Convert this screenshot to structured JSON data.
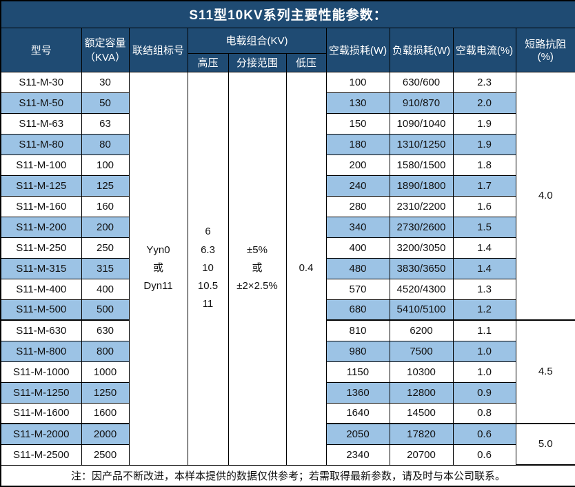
{
  "title": "S11型10KV系列主要性能参数：",
  "columns": {
    "model": "型号",
    "capacity_line1": "额定容量",
    "capacity_line2": "（KVA）",
    "connection": "联结组标号",
    "voltage_group": "电载组合(KV)",
    "hv": "高压",
    "tap_range": "分接范围",
    "lv": "低压",
    "no_load_loss": "空载损耗(W)",
    "load_loss": "负载损耗(W)",
    "no_load_current": "空载电流(%)",
    "impedance": "短路抗阻(%)"
  },
  "merged": {
    "connection_lines": [
      "Yyn0",
      "或",
      "Dyn11"
    ],
    "hv_lines": [
      "6",
      "6.3",
      "10",
      "10.5",
      "11"
    ],
    "tap_lines": [
      "±5%",
      "或",
      "±2×2.5%"
    ],
    "lv_value": "0.4"
  },
  "impedance_groups": [
    {
      "value": "4.0",
      "rows": 12
    },
    {
      "value": "4.5",
      "rows": 5
    },
    {
      "value": "5.0",
      "rows": 2
    }
  ],
  "rows": [
    {
      "model": "S11-M-30",
      "capacity": "30",
      "no_load_loss": "100",
      "load_loss": "630/600",
      "no_load_current": "2.3"
    },
    {
      "model": "S11-M-50",
      "capacity": "50",
      "no_load_loss": "130",
      "load_loss": "910/870",
      "no_load_current": "2.0"
    },
    {
      "model": "S11-M-63",
      "capacity": "63",
      "no_load_loss": "150",
      "load_loss": "1090/1040",
      "no_load_current": "1.9"
    },
    {
      "model": "S11-M-80",
      "capacity": "80",
      "no_load_loss": "180",
      "load_loss": "1310/1250",
      "no_load_current": "1.9"
    },
    {
      "model": "S11-M-100",
      "capacity": "100",
      "no_load_loss": "200",
      "load_loss": "1580/1500",
      "no_load_current": "1.8"
    },
    {
      "model": "S11-M-125",
      "capacity": "125",
      "no_load_loss": "240",
      "load_loss": "1890/1800",
      "no_load_current": "1.7"
    },
    {
      "model": "S11-M-160",
      "capacity": "160",
      "no_load_loss": "280",
      "load_loss": "2310/2200",
      "no_load_current": "1.6"
    },
    {
      "model": "S11-M-200",
      "capacity": "200",
      "no_load_loss": "340",
      "load_loss": "2730/2600",
      "no_load_current": "1.5"
    },
    {
      "model": "S11-M-250",
      "capacity": "250",
      "no_load_loss": "400",
      "load_loss": "3200/3050",
      "no_load_current": "1.4"
    },
    {
      "model": "S11-M-315",
      "capacity": "315",
      "no_load_loss": "480",
      "load_loss": "3830/3650",
      "no_load_current": "1.4"
    },
    {
      "model": "S11-M-400",
      "capacity": "400",
      "no_load_loss": "570",
      "load_loss": "4520/4300",
      "no_load_current": "1.3"
    },
    {
      "model": "S11-M-500",
      "capacity": "500",
      "no_load_loss": "680",
      "load_loss": "5410/5100",
      "no_load_current": "1.2"
    },
    {
      "model": "S11-M-630",
      "capacity": "630",
      "no_load_loss": "810",
      "load_loss": "6200",
      "no_load_current": "1.1"
    },
    {
      "model": "S11-M-800",
      "capacity": "800",
      "no_load_loss": "980",
      "load_loss": "7500",
      "no_load_current": "1.0"
    },
    {
      "model": "S11-M-1000",
      "capacity": "1000",
      "no_load_loss": "1150",
      "load_loss": "10300",
      "no_load_current": "1.0"
    },
    {
      "model": "S11-M-1250",
      "capacity": "1250",
      "no_load_loss": "1360",
      "load_loss": "12800",
      "no_load_current": "0.9"
    },
    {
      "model": "S11-M-1600",
      "capacity": "1600",
      "no_load_loss": "1640",
      "load_loss": "14500",
      "no_load_current": "0.8"
    },
    {
      "model": "S11-M-2000",
      "capacity": "2000",
      "no_load_loss": "2050",
      "load_loss": "17820",
      "no_load_current": "0.6"
    },
    {
      "model": "S11-M-2500",
      "capacity": "2500",
      "no_load_loss": "2340",
      "load_loss": "20700",
      "no_load_current": "0.6"
    }
  ],
  "footer": "注：因产品不断改进，本样本提供的数据仅供参考；若需取得最新参数，请及时与本公司联系。",
  "colors": {
    "header_bg": "#1F4B73",
    "alt_row_bg": "#9CC3E5",
    "border": "#000000"
  }
}
